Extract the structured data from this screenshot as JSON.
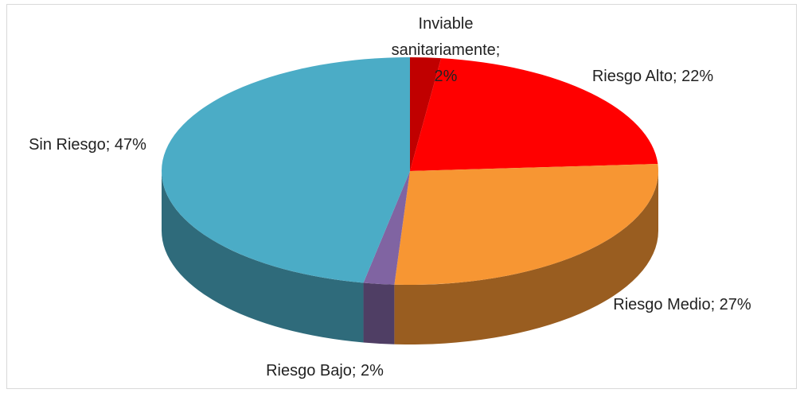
{
  "chart_data": {
    "type": "pie",
    "three_d": true,
    "categories": [
      "Inviable sanitariamente",
      "Riesgo Alto",
      "Riesgo Medio",
      "Riesgo Bajo",
      "Sin Riesgo"
    ],
    "values": [
      2,
      22,
      27,
      2,
      47
    ],
    "value_labels": [
      "Inviable sanitariamente; 2%",
      "Riesgo Alto; 22%",
      "Riesgo Medio; 27%",
      "Riesgo Bajo; 2%",
      "Sin Riesgo; 47%"
    ],
    "colors": [
      "#c00000",
      "#ff0000",
      "#f79633",
      "#8064a2",
      "#4bacc6"
    ]
  }
}
